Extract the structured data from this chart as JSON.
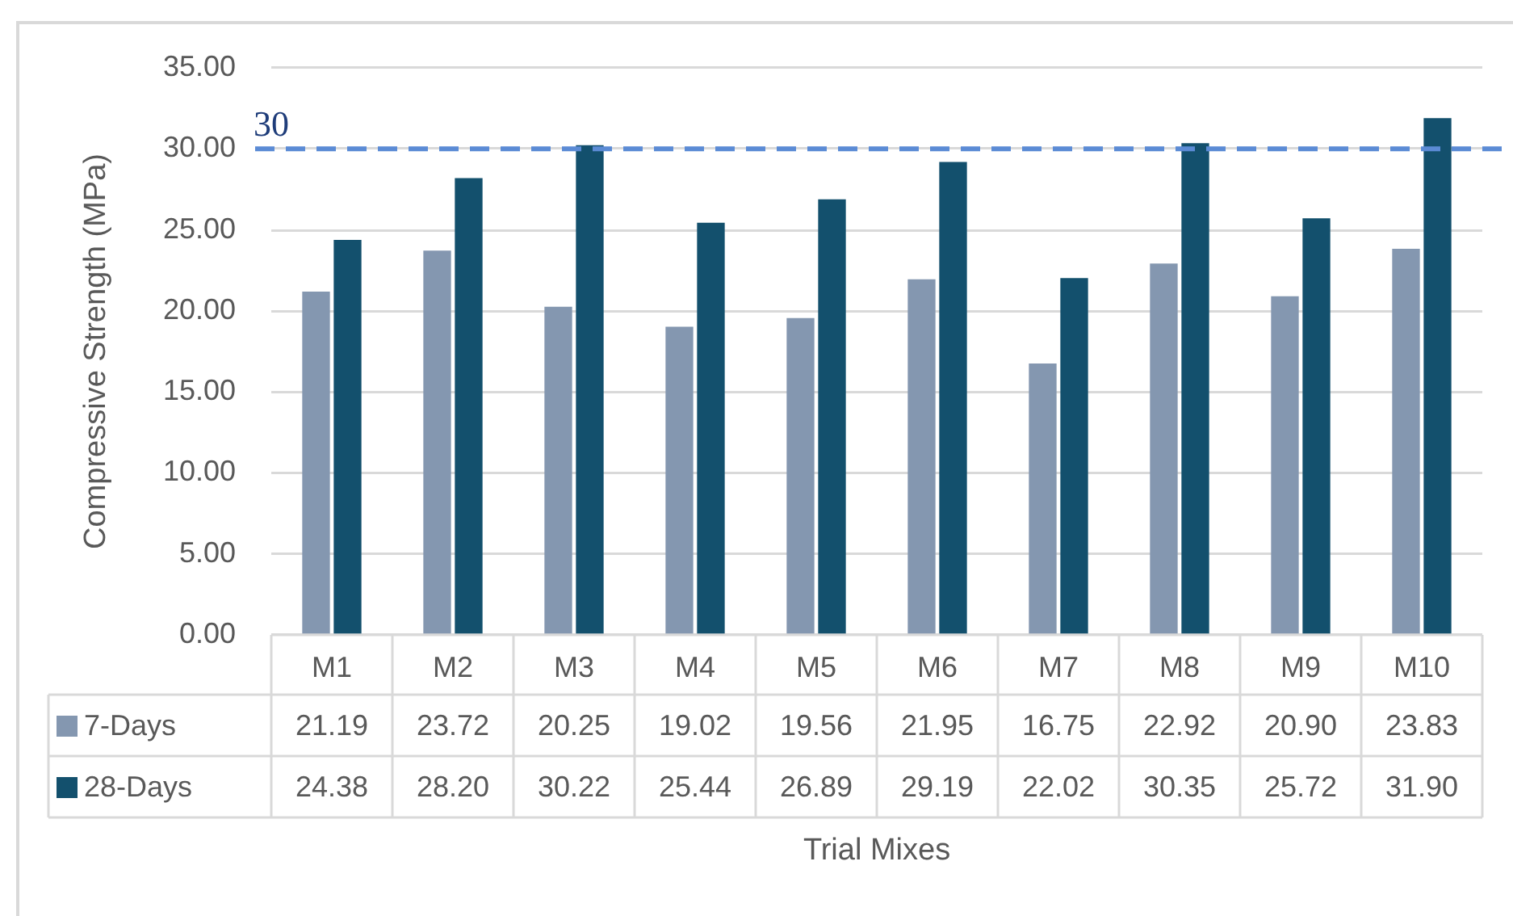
{
  "chart_data": {
    "type": "bar",
    "xlabel": "Trial Mixes",
    "ylabel": "Compressive Strength (MPa)",
    "categories": [
      "M1",
      "M2",
      "M3",
      "M4",
      "M5",
      "M6",
      "M7",
      "M8",
      "M9",
      "M10"
    ],
    "series": [
      {
        "name": "7-Days",
        "color": "#8497b0",
        "values": [
          21.19,
          23.72,
          20.25,
          19.02,
          19.56,
          21.95,
          16.75,
          22.92,
          20.9,
          23.83
        ],
        "value_labels": [
          "21.19",
          "23.72",
          "20.25",
          "19.02",
          "19.56",
          "21.95",
          "16.75",
          "22.92",
          "20.90",
          "23.83"
        ]
      },
      {
        "name": "28-Days",
        "color": "#13506d",
        "values": [
          24.38,
          28.2,
          30.22,
          25.44,
          26.89,
          29.19,
          22.02,
          30.35,
          25.72,
          31.9
        ],
        "value_labels": [
          "24.38",
          "28.20",
          "30.22",
          "25.44",
          "26.89",
          "29.19",
          "22.02",
          "30.35",
          "25.72",
          "31.90"
        ]
      }
    ],
    "ylim": [
      0,
      35
    ],
    "yticks": [
      {
        "value": 0,
        "label": "0.00"
      },
      {
        "value": 5,
        "label": "5.00"
      },
      {
        "value": 10,
        "label": "10.00"
      },
      {
        "value": 15,
        "label": "15.00"
      },
      {
        "value": 20,
        "label": "20.00"
      },
      {
        "value": 25,
        "label": "25.00"
      },
      {
        "value": 30,
        "label": "30.00"
      },
      {
        "value": 35,
        "label": "35.00"
      }
    ],
    "grid": "y",
    "legend": "bottom left",
    "ref_lines": [
      {
        "axis": "y",
        "value": 30,
        "label": "30",
        "color": "#5b8bd5",
        "line_style": "dashed"
      }
    ]
  }
}
